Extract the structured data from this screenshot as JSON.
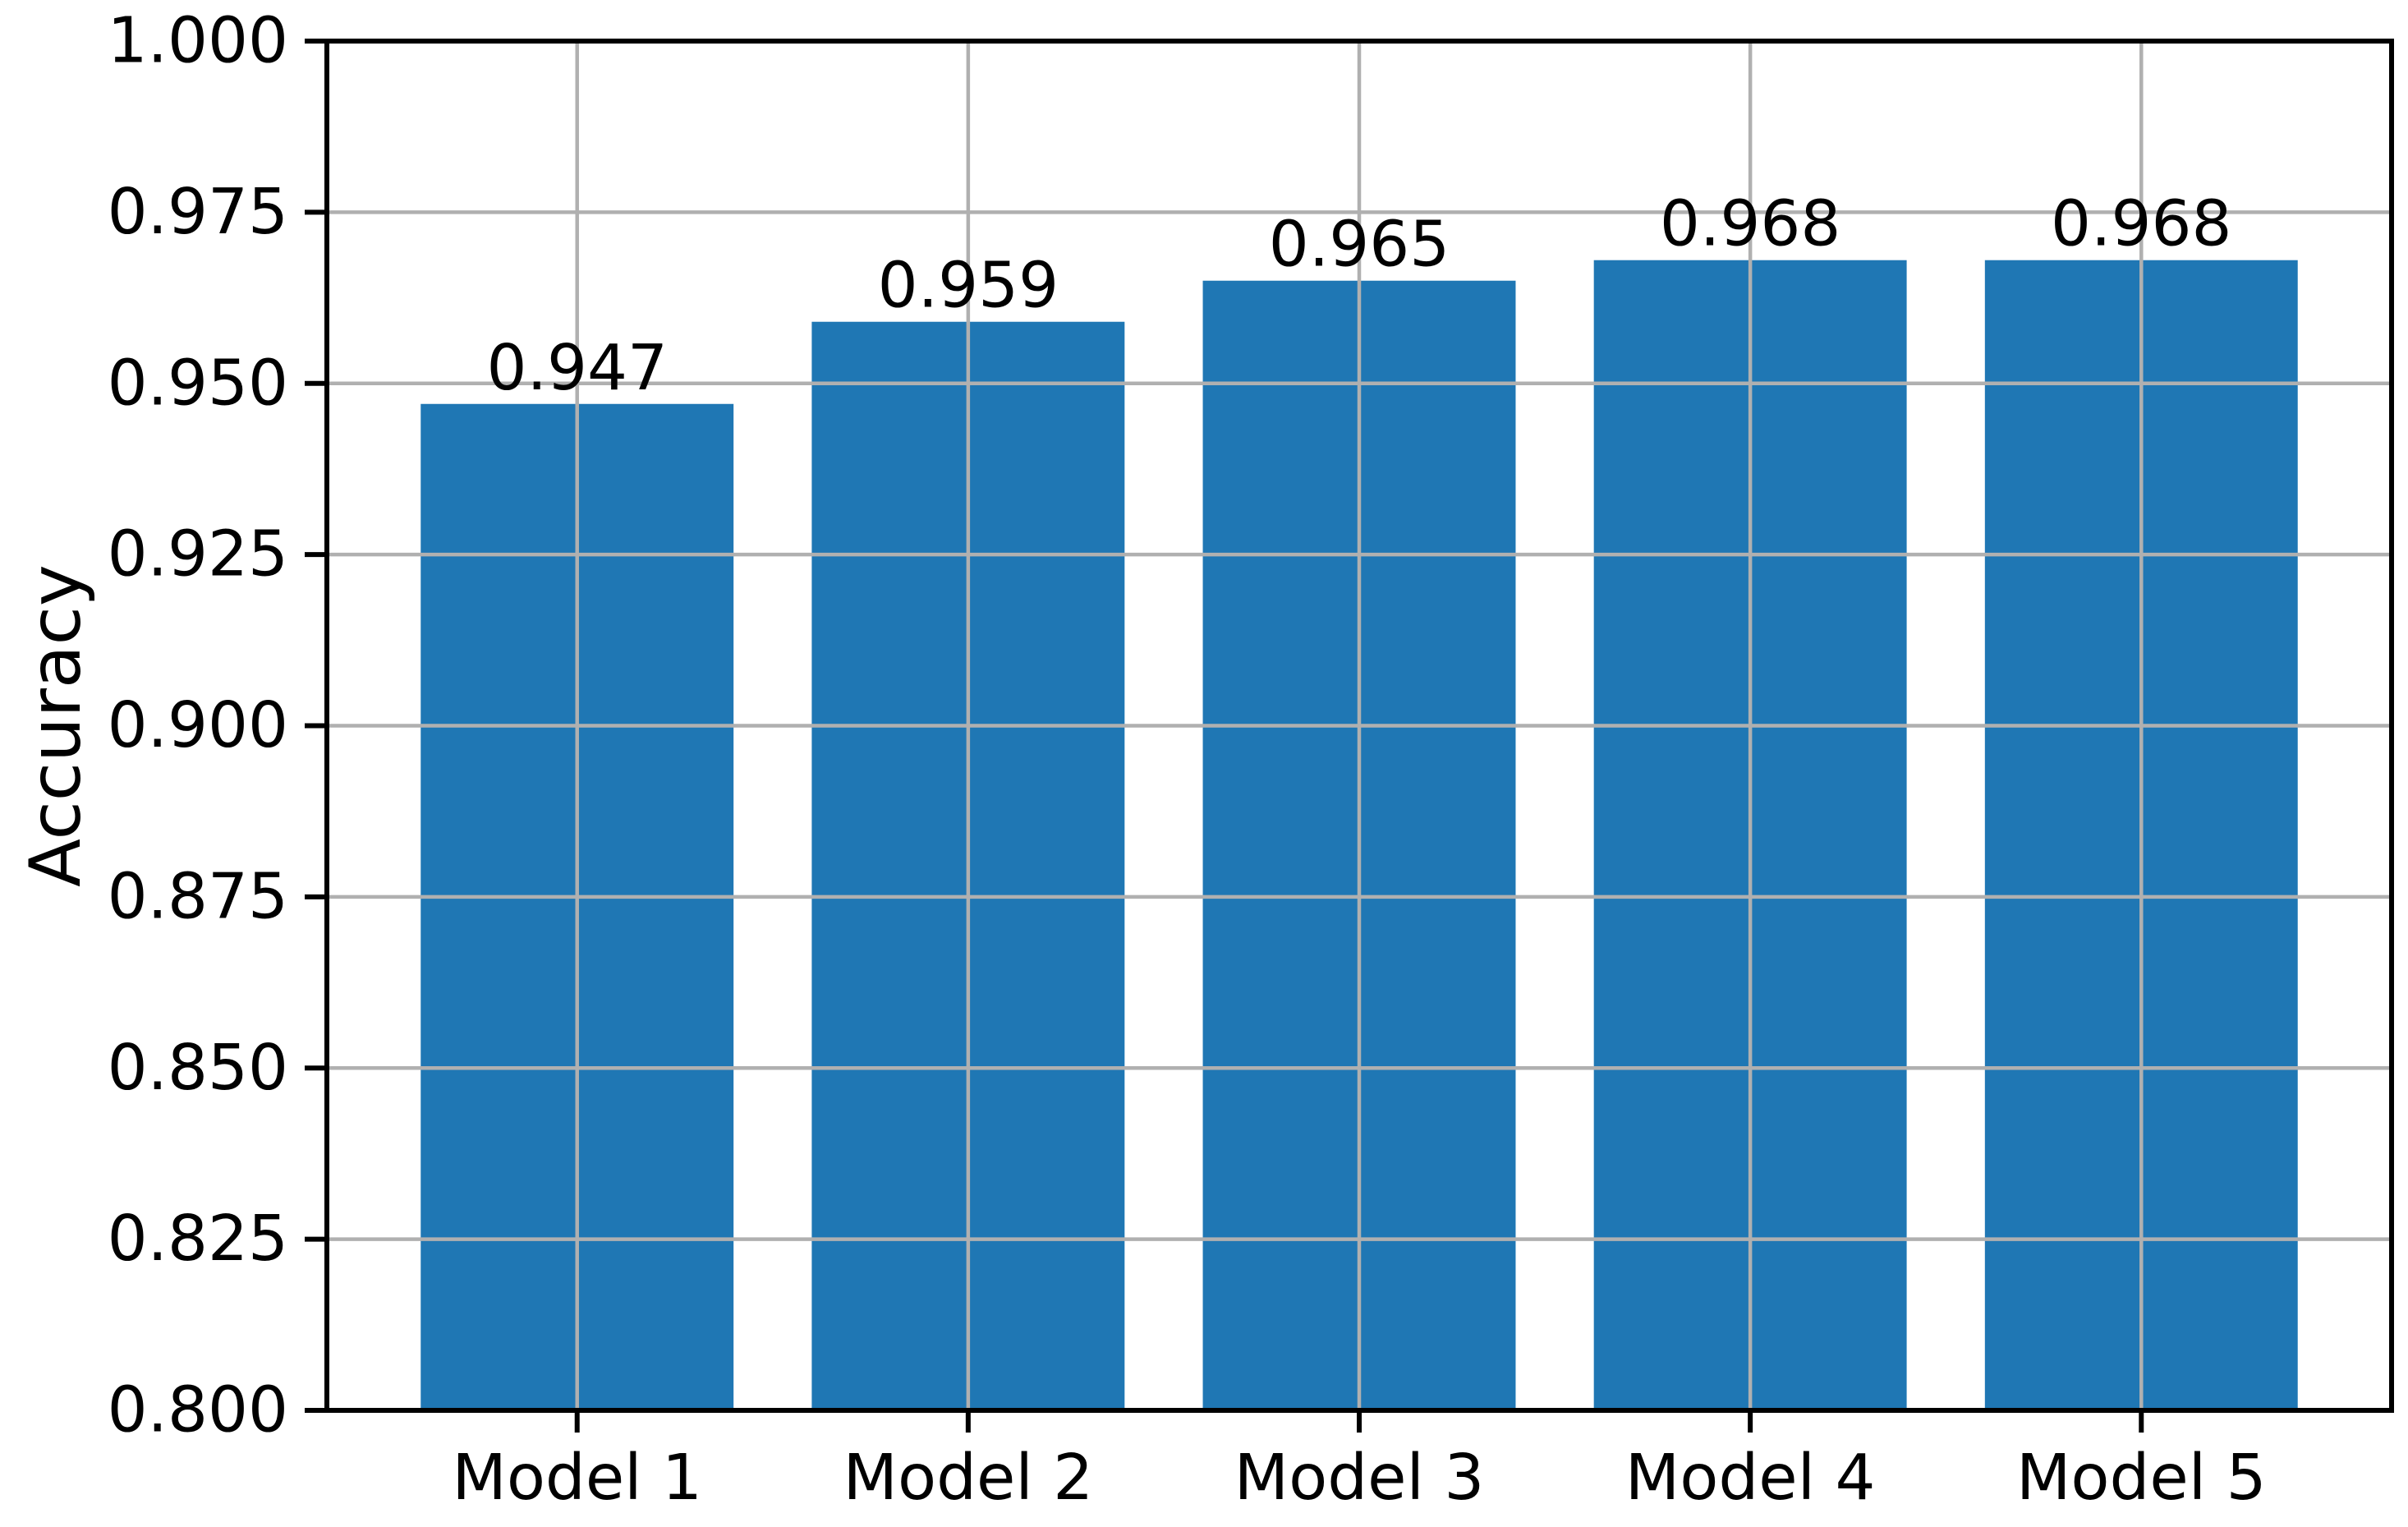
{
  "figure": {
    "background_color": "#ffffff",
    "bar_color": "#1f77b4",
    "grid_color": "#b0b0b0",
    "axis_color": "#000000",
    "text_color": "#000000"
  },
  "chart_data": {
    "type": "bar",
    "title": "",
    "xlabel": "",
    "ylabel": "Accuracy",
    "categories": [
      "Model 1",
      "Model 2",
      "Model 3",
      "Model 4",
      "Model 5"
    ],
    "series": [
      {
        "name": "Accuracy",
        "values": [
          0.947,
          0.959,
          0.965,
          0.968,
          0.968
        ],
        "value_labels": [
          "0.947",
          "0.959",
          "0.965",
          "0.968",
          "0.968"
        ]
      }
    ],
    "ylim": [
      0.8,
      1.0
    ],
    "ytick_labels": [
      "0.800",
      "0.825",
      "0.850",
      "0.875",
      "0.900",
      "0.925",
      "0.950",
      "0.975",
      "1.000"
    ],
    "grid": "on",
    "grid_on_top_of_bars": true,
    "bar_width_fraction": 0.8,
    "x_margin_units": 0.64,
    "legend_position": "none"
  }
}
